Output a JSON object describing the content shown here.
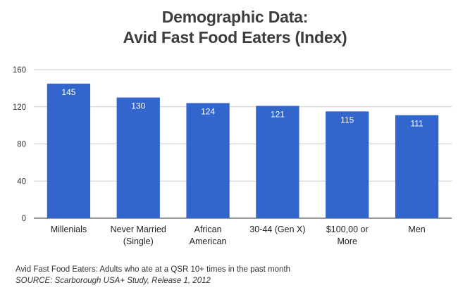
{
  "chart_data": {
    "type": "bar",
    "title": [
      "Demographic Data:",
      "Avid Fast Food Eaters (Index)"
    ],
    "categories": [
      [
        "Millenials"
      ],
      [
        "Never Married",
        "(Single)"
      ],
      [
        "African",
        "American"
      ],
      [
        "30-44 (Gen X)"
      ],
      [
        "$100,00 or",
        "More"
      ],
      [
        "Men"
      ]
    ],
    "values": [
      145,
      130,
      124,
      121,
      115,
      111
    ],
    "data_labels": [
      "145",
      "130",
      "124",
      "121",
      "115",
      "111"
    ],
    "ylim": [
      0,
      160
    ],
    "yticks": [
      "0",
      "40",
      "80",
      "120",
      "160"
    ],
    "ytick_values": [
      0,
      40,
      80,
      120,
      160
    ],
    "grid": true,
    "bar_color": "#3366cc",
    "label_color": "#ffffff"
  },
  "footnote": "Avid Fast Food Eaters: Adults who ate at a QSR 10+ times in the past month",
  "source": "SOURCE: Scarborough USA+ Study, Release 1, 2012"
}
